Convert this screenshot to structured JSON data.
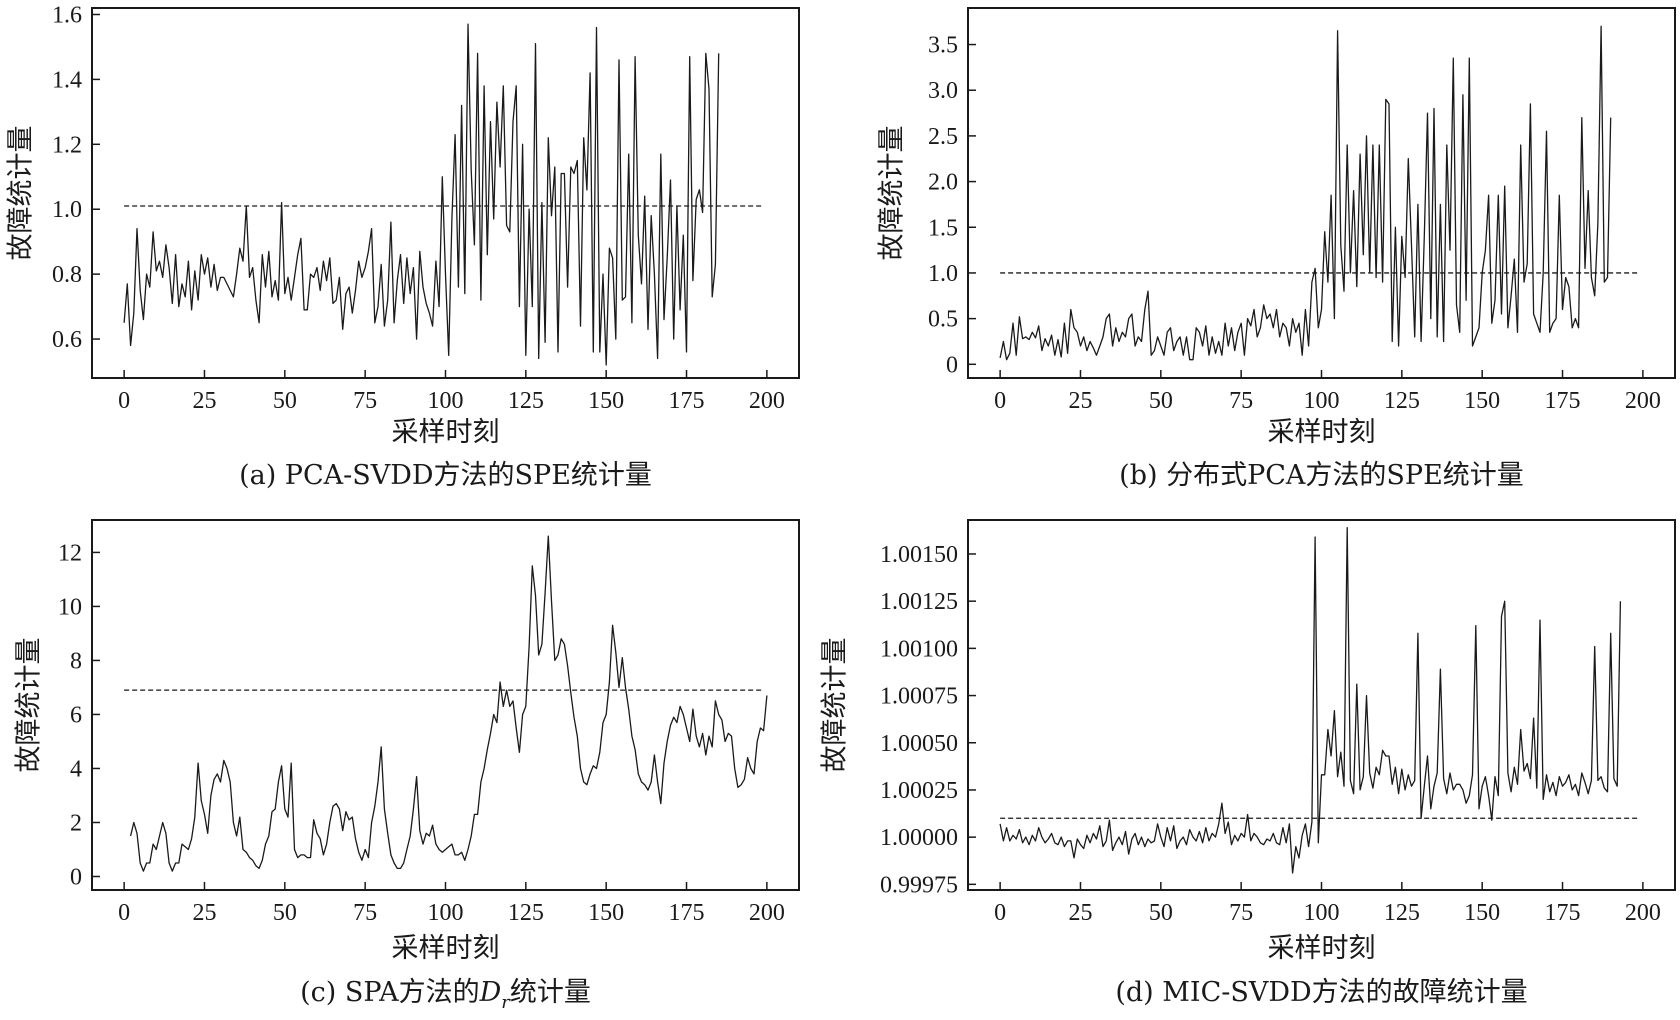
{
  "chart_data": [
    {
      "type": "line",
      "caption": "(a) PCA-SVDD方法的SPE统计量",
      "xlabel": "采样时刻",
      "ylabel": "故障统计量",
      "xlim": [
        -10,
        210
      ],
      "ylim": [
        0.48,
        1.62
      ],
      "xticks": [
        0,
        25,
        50,
        75,
        100,
        125,
        150,
        175,
        200
      ],
      "xtick_labels": [
        "0",
        "25",
        "50",
        "75",
        "100",
        "125",
        "150",
        "175",
        "200"
      ],
      "yticks": [
        0.6,
        0.8,
        1.0,
        1.2,
        1.4,
        1.6
      ],
      "ytick_labels": [
        "0.6",
        "0.8",
        "1.0",
        "1.2",
        "1.4",
        "1.6"
      ],
      "threshold": 1.01,
      "threshold_x": [
        0,
        199
      ],
      "series": [
        {
          "x0": 0,
          "values": [
            0.65,
            0.77,
            0.58,
            0.68,
            0.94,
            0.75,
            0.66,
            0.8,
            0.76,
            0.93,
            0.81,
            0.84,
            0.79,
            0.89,
            0.82,
            0.71,
            0.86,
            0.7,
            0.77,
            0.73,
            0.84,
            0.69,
            0.81,
            0.72,
            0.86,
            0.8,
            0.85,
            0.76,
            0.83,
            0.75,
            0.79,
            0.79,
            0.77,
            0.75,
            0.73,
            0.8,
            0.88,
            0.84,
            1.01,
            0.79,
            0.82,
            0.72,
            0.65,
            0.86,
            0.76,
            0.87,
            0.73,
            0.78,
            0.72,
            1.02,
            0.74,
            0.79,
            0.72,
            0.79,
            0.86,
            0.91,
            0.69,
            0.69,
            0.8,
            0.79,
            0.82,
            0.75,
            0.84,
            0.78,
            0.85,
            0.71,
            0.72,
            0.79,
            0.63,
            0.74,
            0.76,
            0.68,
            0.75,
            0.84,
            0.79,
            0.82,
            0.87,
            0.94,
            0.65,
            0.7,
            0.83,
            0.64,
            0.72,
            0.96,
            0.65,
            0.78,
            0.86,
            0.71,
            0.85,
            0.74,
            0.82,
            0.6,
            0.87,
            0.76,
            0.71,
            0.68,
            0.64,
            0.84,
            0.7,
            1.1,
            0.8,
            0.55,
            0.97,
            1.23,
            0.76,
            1.32,
            0.74,
            1.57,
            1.12,
            0.89,
            1.48,
            0.72,
            1.38,
            0.86,
            1.27,
            0.97,
            1.33,
            1.13,
            1.38,
            0.95,
            0.93,
            1.27,
            1.38,
            0.7,
            1.2,
            0.55,
            1.0,
            0.7,
            1.51,
            0.54,
            1.02,
            0.59,
            1.22,
            0.98,
            1.13,
            0.56,
            1.11,
            1.11,
            0.76,
            1.13,
            1.11,
            1.15,
            0.64,
            1.22,
            1.06,
            1.42,
            0.56,
            1.56,
            0.56,
            0.8,
            0.52,
            0.88,
            0.85,
            0.6,
            1.46,
            0.72,
            0.73,
            1.17,
            0.65,
            1.47,
            0.92,
            0.77,
            1.04,
            0.63,
            0.98,
            0.8,
            0.54,
            1.17,
            0.66,
            0.85,
            1.09,
            0.6,
            1.01,
            0.69,
            0.92,
            0.56,
            1.47,
            0.78,
            1.03,
            1.06,
            0.99,
            1.48,
            1.37,
            0.73,
            0.83,
            1.48
          ]
        }
      ]
    },
    {
      "type": "line",
      "caption": "(b) 分布式PCA方法的SPE统计量",
      "xlabel": "采样时刻",
      "ylabel": "故障统计量",
      "xlim": [
        -10,
        210
      ],
      "ylim": [
        -0.15,
        3.9
      ],
      "xticks": [
        0,
        25,
        50,
        75,
        100,
        125,
        150,
        175,
        200
      ],
      "xtick_labels": [
        "0",
        "25",
        "50",
        "75",
        "100",
        "125",
        "150",
        "175",
        "200"
      ],
      "yticks": [
        0,
        0.5,
        1.0,
        1.5,
        2.0,
        2.5,
        3.0,
        3.5
      ],
      "ytick_labels": [
        "0",
        "0.5",
        "1.0",
        "1.5",
        "2.0",
        "2.5",
        "3.0",
        "3.5"
      ],
      "threshold": 1.0,
      "threshold_x": [
        0,
        199
      ],
      "series": [
        {
          "x0": 0,
          "values": [
            0.07,
            0.25,
            0.05,
            0.12,
            0.45,
            0.1,
            0.52,
            0.28,
            0.3,
            0.27,
            0.35,
            0.29,
            0.42,
            0.15,
            0.28,
            0.2,
            0.32,
            0.1,
            0.27,
            0.08,
            0.45,
            0.12,
            0.6,
            0.4,
            0.35,
            0.2,
            0.3,
            0.15,
            0.25,
            0.18,
            0.1,
            0.2,
            0.3,
            0.5,
            0.55,
            0.2,
            0.4,
            0.25,
            0.35,
            0.3,
            0.5,
            0.55,
            0.2,
            0.3,
            0.25,
            0.6,
            0.8,
            0.1,
            0.15,
            0.3,
            0.2,
            0.1,
            0.35,
            0.4,
            0.15,
            0.25,
            0.3,
            0.1,
            0.3,
            0.05,
            0.05,
            0.4,
            0.35,
            0.2,
            0.42,
            0.1,
            0.3,
            0.12,
            0.25,
            0.1,
            0.45,
            0.2,
            0.4,
            0.15,
            0.35,
            0.45,
            0.1,
            0.5,
            0.42,
            0.6,
            0.3,
            0.4,
            0.65,
            0.5,
            0.55,
            0.4,
            0.6,
            0.3,
            0.45,
            0.4,
            0.2,
            0.5,
            0.35,
            0.45,
            0.1,
            0.6,
            0.2,
            0.9,
            1.05,
            0.4,
            0.6,
            1.45,
            0.9,
            1.85,
            0.5,
            3.65,
            1.3,
            0.8,
            2.4,
            1.0,
            1.9,
            0.85,
            2.3,
            1.2,
            2.5,
            1.0,
            2.4,
            0.95,
            2.4,
            0.9,
            2.9,
            2.85,
            0.25,
            1.5,
            0.2,
            1.4,
            0.95,
            2.25,
            1.3,
            0.3,
            1.75,
            0.25,
            1.4,
            2.75,
            0.5,
            2.8,
            0.3,
            1.75,
            0.25,
            2.4,
            1.25,
            3.35,
            0.65,
            0.35,
            2.95,
            0.7,
            3.35,
            0.2,
            0.3,
            0.4,
            1.0,
            1.25,
            1.85,
            0.45,
            0.7,
            1.85,
            0.55,
            1.95,
            0.4,
            0.75,
            1.15,
            0.35,
            2.4,
            0.9,
            1.1,
            2.85,
            0.55,
            0.45,
            0.35,
            1.0,
            2.55,
            0.35,
            0.45,
            0.5,
            1.85,
            0.6,
            0.95,
            0.85,
            0.4,
            0.5,
            0.4,
            2.7,
            1.05,
            1.9,
            0.95,
            0.75,
            1.55,
            3.7,
            0.9,
            0.95,
            2.7
          ]
        }
      ]
    },
    {
      "type": "line",
      "caption": "(c) SPA方法的D统计量",
      "caption_parts": [
        "(c) SPA方法的",
        "D",
        "r",
        "统计量"
      ],
      "xlabel": "采样时刻",
      "ylabel": "故障统计量",
      "xlim": [
        -10,
        210
      ],
      "ylim": [
        -0.5,
        13.2
      ],
      "xticks": [
        0,
        25,
        50,
        75,
        100,
        125,
        150,
        175,
        200
      ],
      "xtick_labels": [
        "0",
        "25",
        "50",
        "75",
        "100",
        "125",
        "150",
        "175",
        "200"
      ],
      "yticks": [
        0,
        2,
        4,
        6,
        8,
        10,
        12
      ],
      "ytick_labels": [
        "0",
        "2",
        "4",
        "6",
        "8",
        "10",
        "12"
      ],
      "threshold": 6.9,
      "threshold_x": [
        0,
        199
      ],
      "series": [
        {
          "x0": 2,
          "values": [
            1.5,
            2.0,
            1.6,
            0.5,
            0.2,
            0.5,
            0.5,
            1.2,
            1.0,
            1.5,
            2.0,
            1.6,
            0.5,
            0.2,
            0.5,
            0.5,
            1.2,
            1.1,
            1.0,
            1.4,
            2.2,
            4.2,
            2.8,
            2.3,
            1.6,
            3.0,
            3.6,
            3.8,
            3.5,
            4.3,
            4.0,
            3.5,
            2.0,
            1.5,
            2.2,
            1.0,
            0.9,
            0.7,
            0.6,
            0.4,
            0.3,
            0.6,
            1.2,
            1.5,
            2.4,
            2.5,
            3.5,
            4.1,
            2.5,
            2.2,
            4.2,
            1.0,
            0.7,
            0.8,
            0.8,
            0.7,
            0.7,
            2.1,
            1.6,
            1.4,
            0.8,
            1.2,
            2.0,
            2.6,
            2.7,
            2.5,
            1.7,
            2.4,
            2.1,
            2.2,
            1.4,
            0.9,
            0.6,
            1.0,
            0.7,
            2.0,
            2.6,
            3.5,
            4.8,
            2.5,
            1.6,
            0.8,
            0.5,
            0.3,
            0.3,
            0.5,
            1.0,
            1.5,
            2.5,
            3.7,
            1.7,
            1.2,
            1.6,
            1.5,
            1.9,
            1.2,
            1.0,
            0.9,
            1.0,
            1.1,
            1.2,
            0.8,
            0.8,
            0.9,
            0.6,
            1.0,
            1.5,
            2.3,
            2.3,
            3.5,
            4.0,
            4.7,
            5.3,
            6.0,
            5.7,
            7.2,
            6.3,
            6.9,
            6.3,
            6.5,
            5.5,
            4.6,
            6.0,
            6.3,
            8.5,
            11.5,
            10.4,
            8.2,
            8.6,
            10.5,
            12.6,
            10.2,
            8.0,
            8.2,
            8.8,
            8.6,
            7.8,
            6.8,
            5.9,
            5.2,
            4.0,
            3.5,
            3.4,
            3.8,
            4.1,
            4.0,
            4.6,
            5.7,
            6.0,
            7.2,
            9.3,
            8.3,
            7.0,
            8.1,
            7.0,
            6.2,
            5.2,
            4.7,
            3.8,
            3.5,
            3.4,
            3.2,
            3.5,
            4.5,
            3.5,
            2.7,
            4.2,
            5.0,
            5.6,
            5.9,
            5.7,
            6.3,
            6.0,
            5.5,
            5.0,
            6.2,
            5.2,
            4.8,
            5.3,
            4.5,
            5.2,
            4.8,
            6.5,
            6.0,
            5.8,
            5.0,
            5.3,
            5.2,
            4.0,
            3.3,
            3.4,
            3.6,
            4.4,
            4.0,
            3.8,
            5.0,
            5.5,
            5.4,
            6.7
          ]
        }
      ]
    },
    {
      "type": "line",
      "caption": "(d) MIC-SVDD方法的故障统计量",
      "xlabel": "采样时刻",
      "ylabel": "故障统计量",
      "xlim": [
        -10,
        210
      ],
      "ylim": [
        0.99972,
        1.00168
      ],
      "xticks": [
        0,
        25,
        50,
        75,
        100,
        125,
        150,
        175,
        200
      ],
      "xtick_labels": [
        "0",
        "25",
        "50",
        "75",
        "100",
        "125",
        "150",
        "175",
        "200"
      ],
      "yticks": [
        0.99975,
        1.0,
        1.00025,
        1.0005,
        1.00075,
        1.001,
        1.00125,
        1.0015
      ],
      "ytick_labels": [
        "0.99975",
        "1.00000",
        "1.00025",
        "1.00050",
        "1.00075",
        "1.00100",
        "1.00125",
        "1.00150"
      ],
      "threshold": 1.0001,
      "threshold_x": [
        0,
        199
      ],
      "series": [
        {
          "x0": 0,
          "values": [
            1.00007,
            0.99998,
            1.00005,
            0.99998,
            1.00001,
            0.99999,
            1.00004,
            0.99997,
            1.0,
            0.99996,
            1.00001,
            0.99998,
            1.00005,
            1.0,
            0.99997,
            0.99999,
            1.00002,
            0.99997,
            0.99996,
            1.0,
            0.99995,
            0.99998,
            0.99998,
            0.99989,
            0.99999,
            0.99996,
            0.99994,
            1.00001,
            0.99997,
            1.00002,
            0.99999,
            1.00006,
            0.99995,
            0.99998,
            1.00009,
            0.99993,
            0.99997,
            1.0,
            0.99996,
            1.00003,
            0.99991,
            0.99999,
            1.00002,
            0.99996,
            1.0,
            0.99995,
            0.99999,
            0.99997,
            0.99998,
            1.00007,
            1.0,
            0.99995,
            1.00005,
            0.99998,
            1.00006,
            0.99994,
            0.99998,
            1.0,
            0.99996,
            1.00004,
            1.0,
            0.99998,
            1.00003,
            0.99997,
            1.00005,
            0.99998,
            1.00002,
            1.0,
            1.00007,
            1.00018,
            1.00002,
            1.00008,
            0.99996,
            1.00001,
            0.99998,
            1.00002,
            1.0,
            1.00012,
            0.99998,
            1.00002,
            1.0,
            0.99997,
            0.99996,
            0.99999,
            0.99998,
            1.00002,
            0.99997,
            0.99996,
            1.00005,
            0.99997,
            1.00007,
            0.99981,
            0.99995,
            0.99989,
            1.00001,
            1.00007,
            0.99995,
            1.00008,
            1.00159,
            0.99997,
            1.00033,
            1.00033,
            1.00057,
            1.00043,
            1.00067,
            1.00032,
            1.00045,
            1.00027,
            1.00164,
            1.0003,
            1.00023,
            1.00081,
            1.00025,
            1.00032,
            1.00075,
            1.00034,
            1.00026,
            1.00037,
            1.00033,
            1.00046,
            1.00043,
            1.00043,
            1.00028,
            1.00037,
            1.00023,
            1.00036,
            1.00025,
            1.00033,
            1.00027,
            1.0003,
            1.00108,
            1.0001,
            1.00027,
            1.00043,
            1.00015,
            1.00027,
            1.00034,
            1.00089,
            1.00031,
            1.00023,
            1.00034,
            1.00025,
            1.00028,
            1.00028,
            1.00025,
            1.00018,
            1.00022,
            1.00033,
            1.00112,
            1.00015,
            1.00027,
            1.00032,
            1.00022,
            1.00009,
            1.00032,
            1.00022,
            1.00117,
            1.00125,
            1.00034,
            1.00024,
            1.00037,
            1.00028,
            1.00057,
            1.00035,
            1.00039,
            1.00031,
            1.00063,
            1.00026,
            1.00115,
            1.0002,
            1.00033,
            1.00024,
            1.00029,
            1.00022,
            1.00032,
            1.00027,
            1.00029,
            1.00033,
            1.00025,
            1.00028,
            1.00022,
            1.00034,
            1.00029,
            1.00023,
            1.0003,
            1.00101,
            1.0003,
            1.00032,
            1.00026,
            1.00024,
            1.00108,
            1.00031,
            1.00027,
            1.00125
          ]
        }
      ]
    }
  ]
}
